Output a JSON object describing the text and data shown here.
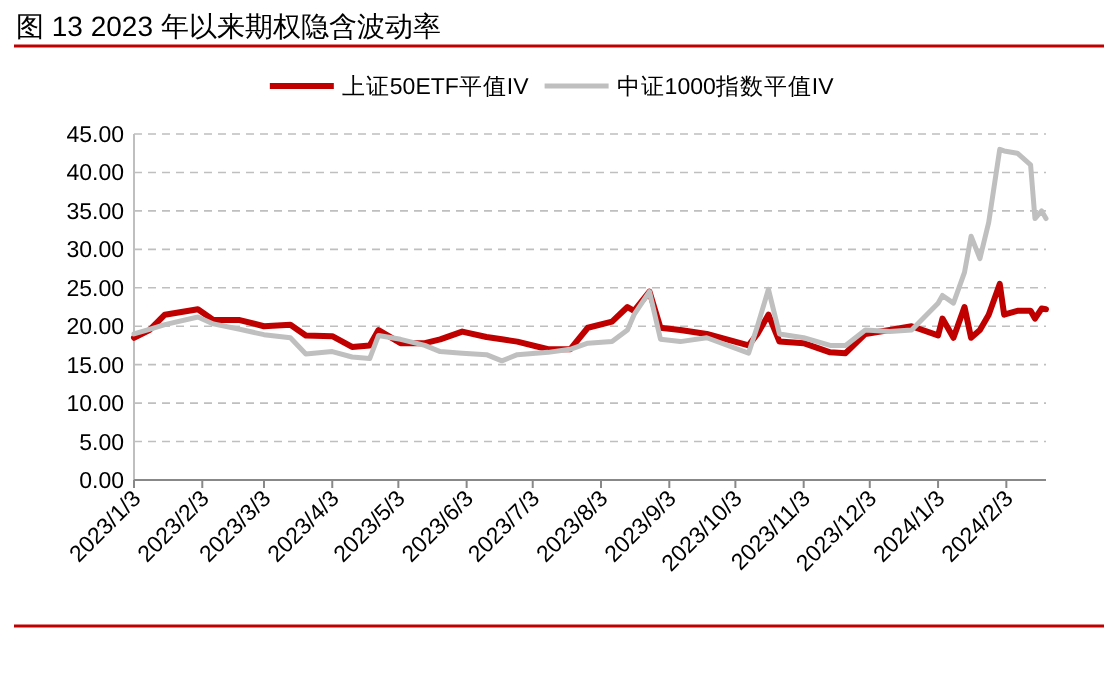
{
  "chart_data": {
    "type": "line",
    "title": "图 13  2023 年以来期权隐含波动率",
    "legend": "top",
    "grid": "y",
    "line_style": "solid",
    "marker": "none",
    "x": [
      "2023-01-03",
      "2023-01-10",
      "2023-01-17",
      "2023-02-01",
      "2023-02-08",
      "2023-02-20",
      "2023-03-03",
      "2023-03-15",
      "2023-03-22",
      "2023-04-03",
      "2023-04-12",
      "2023-04-20",
      "2023-04-24",
      "2023-05-04",
      "2023-05-15",
      "2023-05-22",
      "2023-06-01",
      "2023-06-12",
      "2023-06-19",
      "2023-06-26",
      "2023-07-10",
      "2023-07-20",
      "2023-07-28",
      "2023-08-08",
      "2023-08-15",
      "2023-08-18",
      "2023-08-25",
      "2023-08-30",
      "2023-09-08",
      "2023-09-20",
      "2023-10-09",
      "2023-10-13",
      "2023-10-18",
      "2023-10-23",
      "2023-11-03",
      "2023-11-15",
      "2023-11-22",
      "2023-12-01",
      "2023-12-12",
      "2023-12-22",
      "2024-01-03",
      "2024-01-05",
      "2024-01-10",
      "2024-01-15",
      "2024-01-18",
      "2024-01-22",
      "2024-01-26",
      "2024-01-31",
      "2024-02-02",
      "2024-02-08",
      "2024-02-14",
      "2024-02-16",
      "2024-02-19",
      "2024-02-21"
    ],
    "series": [
      {
        "name": "上证50ETF平值IV",
        "color": "#c00000",
        "values": [
          18.5,
          19.5,
          21.5,
          22.2,
          20.8,
          20.8,
          20,
          20.2,
          18.8,
          18.7,
          17.3,
          17.5,
          19.5,
          17.8,
          17.8,
          18.3,
          19.3,
          18.6,
          18.3,
          18,
          17,
          17,
          19.8,
          20.6,
          22.5,
          22,
          24.5,
          19.8,
          19.5,
          19,
          17.5,
          19,
          21.5,
          18,
          17.8,
          16.6,
          16.5,
          19,
          19.5,
          20,
          18.8,
          21,
          18.5,
          22.5,
          18.5,
          19.5,
          21.5,
          25.5,
          21.5,
          22,
          22,
          21,
          22.3,
          22.2
        ]
      },
      {
        "name": "中证1000指数平值IV",
        "color": "#bfbfbf",
        "values": [
          19,
          19.6,
          20.2,
          21.2,
          20.3,
          19.6,
          18.9,
          18.5,
          16.4,
          16.7,
          16,
          15.8,
          18.8,
          18.3,
          17.5,
          16.7,
          16.5,
          16.3,
          15.5,
          16.3,
          16.6,
          17,
          17.8,
          18,
          19.5,
          21.5,
          24.5,
          18.3,
          18,
          18.5,
          16.5,
          20,
          24.8,
          19,
          18.5,
          17.5,
          17.5,
          19.5,
          19.3,
          19.5,
          23,
          24,
          23,
          27,
          31.7,
          28.8,
          33.5,
          43,
          42.8,
          42.5,
          41,
          34,
          35,
          34
        ]
      }
    ],
    "xlim": [
      "2023-01-03",
      "2024-02-21"
    ],
    "xticks": [
      {
        "value": "2023-01-03",
        "label": "2023/1/3"
      },
      {
        "value": "2023-02-03",
        "label": "2023/2/3"
      },
      {
        "value": "2023-03-03",
        "label": "2023/3/3"
      },
      {
        "value": "2023-04-03",
        "label": "2023/4/3"
      },
      {
        "value": "2023-05-03",
        "label": "2023/5/3"
      },
      {
        "value": "2023-06-03",
        "label": "2023/6/3"
      },
      {
        "value": "2023-07-03",
        "label": "2023/7/3"
      },
      {
        "value": "2023-08-03",
        "label": "2023/8/3"
      },
      {
        "value": "2023-09-03",
        "label": "2023/9/3"
      },
      {
        "value": "2023-10-03",
        "label": "2023/10/3"
      },
      {
        "value": "2023-11-03",
        "label": "2023/11/3"
      },
      {
        "value": "2023-12-03",
        "label": "2023/12/3"
      },
      {
        "value": "2024-01-03",
        "label": "2024/1/3"
      },
      {
        "value": "2024-02-03",
        "label": "2024/2/3"
      }
    ],
    "ylim": [
      0,
      45
    ],
    "yticks": [
      {
        "value": 0,
        "label": "0.00"
      },
      {
        "value": 5,
        "label": "5.00"
      },
      {
        "value": 10,
        "label": "10.00"
      },
      {
        "value": 15,
        "label": "15.00"
      },
      {
        "value": 20,
        "label": "20.00"
      },
      {
        "value": 25,
        "label": "25.00"
      },
      {
        "value": 30,
        "label": "30.00"
      },
      {
        "value": 35,
        "label": "35.00"
      },
      {
        "value": 40,
        "label": "40.00"
      },
      {
        "value": 45,
        "label": "45.00"
      }
    ]
  }
}
